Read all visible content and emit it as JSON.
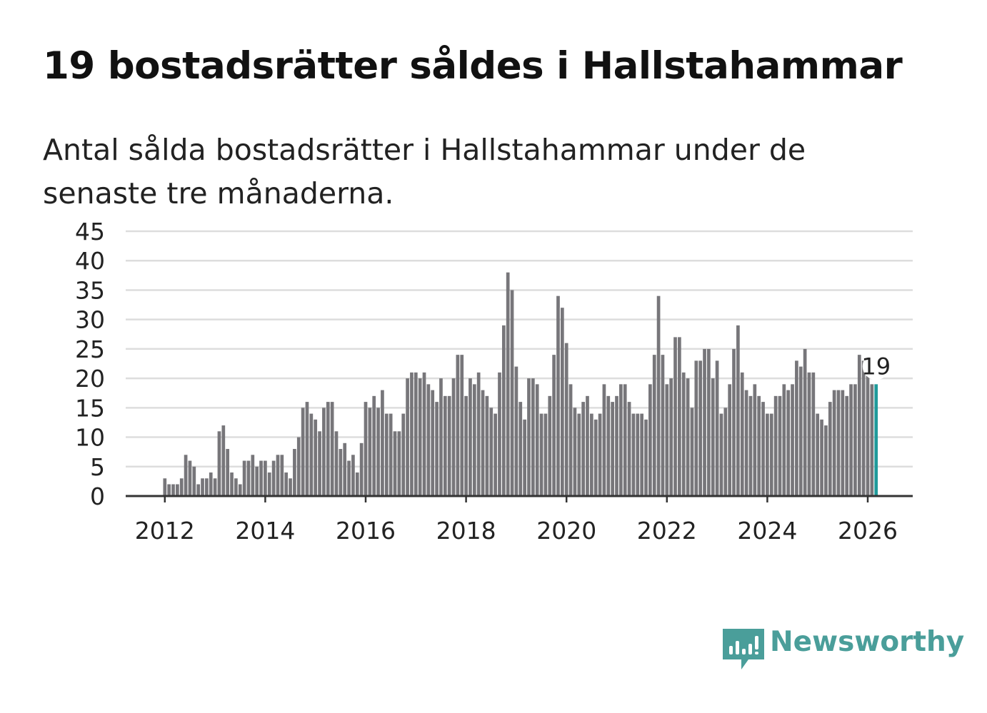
{
  "title": "19 bostadsrätter såldes i Hallstahammar",
  "subtitle": "Antal sålda bostadsrätter i Hallstahammar under de senaste tre månaderna.",
  "brand": {
    "name": "Newsworthy",
    "color": "#4a9e9a",
    "icon": "newsworthy-logo-icon"
  },
  "colors": {
    "bar": "#77767a",
    "highlight": "#1f9a9a",
    "grid": "#dddddd",
    "axis": "#333333"
  },
  "chart_data": {
    "type": "bar",
    "title": "19 bostadsrätter såldes i Hallstahammar",
    "xlabel": "",
    "ylabel": "",
    "ylim": [
      0,
      45
    ],
    "yticks": [
      "0",
      "5",
      "10",
      "15",
      "20",
      "25",
      "30",
      "35",
      "40",
      "45"
    ],
    "xticks": [
      "2012",
      "2014",
      "2016",
      "2018",
      "2020",
      "2022",
      "2024",
      "2026"
    ],
    "x_start": "2012-01",
    "x_end": "2026-03",
    "series": [
      {
        "name": "Antal sålda bostadsrätter",
        "values": [
          3,
          2,
          2,
          2,
          3,
          7,
          6,
          5,
          2,
          3,
          3,
          4,
          3,
          11,
          12,
          8,
          4,
          3,
          2,
          6,
          6,
          7,
          5,
          6,
          6,
          4,
          6,
          7,
          7,
          4,
          3,
          8,
          10,
          15,
          16,
          14,
          13,
          11,
          15,
          16,
          16,
          11,
          8,
          9,
          6,
          7,
          4,
          9,
          16,
          15,
          17,
          15,
          18,
          14,
          14,
          11,
          11,
          14,
          20,
          21,
          21,
          20,
          21,
          19,
          18,
          16,
          20,
          17,
          17,
          20,
          24,
          24,
          17,
          20,
          19,
          21,
          18,
          17,
          15,
          14,
          21,
          29,
          38,
          35,
          22,
          16,
          13,
          20,
          20,
          19,
          14,
          14,
          17,
          24,
          34,
          32,
          26,
          19,
          15,
          14,
          16,
          17,
          14,
          13,
          14,
          19,
          17,
          16,
          17,
          19,
          19,
          16,
          14,
          14,
          14,
          13,
          19,
          24,
          34,
          24,
          19,
          20,
          27,
          27,
          21,
          20,
          15,
          23,
          23,
          25,
          25,
          20,
          23,
          14,
          15,
          19,
          25,
          29,
          21,
          18,
          17,
          19,
          17,
          16,
          14,
          14,
          17,
          17,
          19,
          18,
          19,
          23,
          22,
          25,
          21,
          21,
          14,
          13,
          12,
          16,
          18,
          18,
          18,
          17,
          19,
          19,
          24,
          23,
          21,
          19,
          19
        ]
      }
    ],
    "highlight": {
      "label": "19",
      "value": 19,
      "period": "2026-03"
    }
  }
}
